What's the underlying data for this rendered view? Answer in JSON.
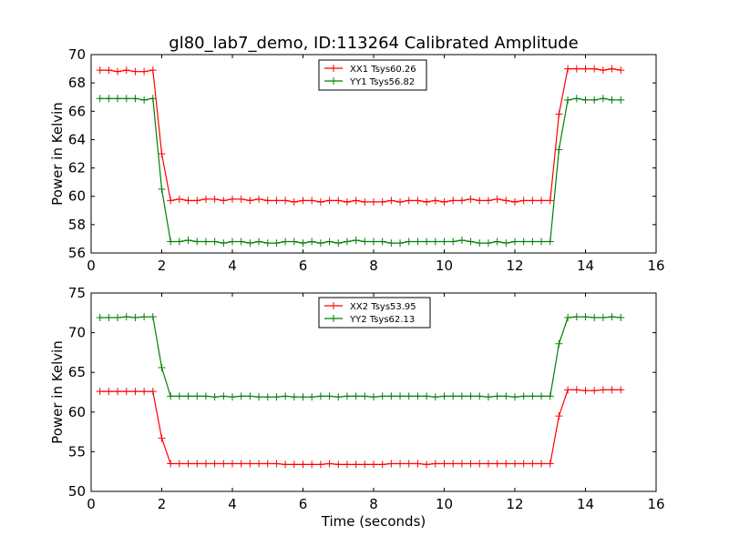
{
  "figure": {
    "title": "gl80_lab7_demo, ID:113264 Calibrated Amplitude"
  },
  "chart_data": [
    {
      "type": "line",
      "title": "gl80_lab7_demo, ID:113264 Calibrated Amplitude",
      "xlabel": "",
      "ylabel": "Power in Kelvin",
      "xlim": [
        0,
        16
      ],
      "ylim": [
        56,
        70
      ],
      "xticks": [
        0,
        2,
        4,
        6,
        8,
        10,
        12,
        14,
        16
      ],
      "yticks": [
        56,
        58,
        60,
        62,
        64,
        66,
        68,
        70
      ],
      "grid": false,
      "legend_position": "top-center",
      "x": [
        0.25,
        0.5,
        0.75,
        1.0,
        1.25,
        1.5,
        1.75,
        2.0,
        2.25,
        2.5,
        2.75,
        3.0,
        3.25,
        3.5,
        3.75,
        4.0,
        4.25,
        4.5,
        4.75,
        5.0,
        5.25,
        5.5,
        5.75,
        6.0,
        6.25,
        6.5,
        6.75,
        7.0,
        7.25,
        7.5,
        7.75,
        8.0,
        8.25,
        8.5,
        8.75,
        9.0,
        9.25,
        9.5,
        9.75,
        10.0,
        10.25,
        10.5,
        10.75,
        11.0,
        11.25,
        11.5,
        11.75,
        12.0,
        12.25,
        12.5,
        12.75,
        13.0,
        13.25,
        13.5,
        13.75,
        14.0,
        14.25,
        14.5,
        14.75,
        15.0
      ],
      "series": [
        {
          "name": "XX1 Tsys60.26",
          "color": "#ff0000",
          "values": [
            68.9,
            68.9,
            68.8,
            68.9,
            68.8,
            68.8,
            68.9,
            63.0,
            59.7,
            59.8,
            59.7,
            59.7,
            59.8,
            59.8,
            59.7,
            59.8,
            59.8,
            59.7,
            59.8,
            59.7,
            59.7,
            59.7,
            59.6,
            59.7,
            59.7,
            59.6,
            59.7,
            59.7,
            59.6,
            59.7,
            59.6,
            59.6,
            59.6,
            59.7,
            59.6,
            59.7,
            59.7,
            59.6,
            59.7,
            59.6,
            59.7,
            59.7,
            59.8,
            59.7,
            59.7,
            59.8,
            59.7,
            59.6,
            59.7,
            59.7,
            59.7,
            59.7,
            65.8,
            69.0,
            69.0,
            69.0,
            69.0,
            68.9,
            69.0,
            68.9
          ]
        },
        {
          "name": "YY1 Tsys56.82",
          "color": "#008000",
          "values": [
            66.9,
            66.9,
            66.9,
            66.9,
            66.9,
            66.8,
            66.9,
            60.5,
            56.8,
            56.8,
            56.9,
            56.8,
            56.8,
            56.8,
            56.7,
            56.8,
            56.8,
            56.7,
            56.8,
            56.7,
            56.7,
            56.8,
            56.8,
            56.7,
            56.8,
            56.7,
            56.8,
            56.7,
            56.8,
            56.9,
            56.8,
            56.8,
            56.8,
            56.7,
            56.7,
            56.8,
            56.8,
            56.8,
            56.8,
            56.8,
            56.8,
            56.9,
            56.8,
            56.7,
            56.7,
            56.8,
            56.7,
            56.8,
            56.8,
            56.8,
            56.8,
            56.8,
            63.3,
            66.8,
            66.9,
            66.8,
            66.8,
            66.9,
            66.8,
            66.8
          ]
        }
      ]
    },
    {
      "type": "line",
      "title": "",
      "xlabel": "Time (seconds)",
      "ylabel": "Power in Kelvin",
      "xlim": [
        0,
        16
      ],
      "ylim": [
        50,
        75
      ],
      "xticks": [
        0,
        2,
        4,
        6,
        8,
        10,
        12,
        14,
        16
      ],
      "yticks": [
        50,
        55,
        60,
        65,
        70,
        75
      ],
      "grid": false,
      "legend_position": "top-center",
      "x": [
        0.25,
        0.5,
        0.75,
        1.0,
        1.25,
        1.5,
        1.75,
        2.0,
        2.25,
        2.5,
        2.75,
        3.0,
        3.25,
        3.5,
        3.75,
        4.0,
        4.25,
        4.5,
        4.75,
        5.0,
        5.25,
        5.5,
        5.75,
        6.0,
        6.25,
        6.5,
        6.75,
        7.0,
        7.25,
        7.5,
        7.75,
        8.0,
        8.25,
        8.5,
        8.75,
        9.0,
        9.25,
        9.5,
        9.75,
        10.0,
        10.25,
        10.5,
        10.75,
        11.0,
        11.25,
        11.5,
        11.75,
        12.0,
        12.25,
        12.5,
        12.75,
        13.0,
        13.25,
        13.5,
        13.75,
        14.0,
        14.25,
        14.5,
        14.75,
        15.0
      ],
      "series": [
        {
          "name": "XX2 Tsys53.95",
          "color": "#ff0000",
          "values": [
            62.6,
            62.6,
            62.6,
            62.6,
            62.6,
            62.6,
            62.6,
            56.7,
            53.5,
            53.5,
            53.5,
            53.5,
            53.5,
            53.5,
            53.5,
            53.5,
            53.5,
            53.5,
            53.5,
            53.5,
            53.5,
            53.4,
            53.4,
            53.4,
            53.4,
            53.4,
            53.5,
            53.4,
            53.4,
            53.4,
            53.4,
            53.4,
            53.4,
            53.5,
            53.5,
            53.5,
            53.5,
            53.4,
            53.5,
            53.5,
            53.5,
            53.5,
            53.5,
            53.5,
            53.5,
            53.5,
            53.5,
            53.5,
            53.5,
            53.5,
            53.5,
            53.5,
            59.5,
            62.8,
            62.8,
            62.7,
            62.7,
            62.8,
            62.8,
            62.8
          ]
        },
        {
          "name": "YY2 Tsys62.13",
          "color": "#008000",
          "values": [
            71.9,
            71.9,
            71.9,
            72.0,
            71.9,
            72.0,
            72.0,
            65.6,
            62.0,
            62.0,
            62.0,
            62.0,
            62.0,
            61.9,
            62.0,
            61.9,
            62.0,
            62.0,
            61.9,
            61.9,
            61.9,
            62.0,
            61.9,
            61.9,
            61.9,
            62.0,
            62.0,
            61.9,
            62.0,
            62.0,
            62.0,
            61.9,
            62.0,
            62.0,
            62.0,
            62.0,
            62.0,
            62.0,
            61.9,
            62.0,
            62.0,
            62.0,
            62.0,
            62.0,
            61.9,
            62.0,
            62.0,
            61.9,
            62.0,
            62.0,
            62.0,
            62.0,
            68.6,
            71.9,
            72.0,
            72.0,
            71.9,
            71.9,
            72.0,
            71.9
          ]
        }
      ]
    }
  ]
}
